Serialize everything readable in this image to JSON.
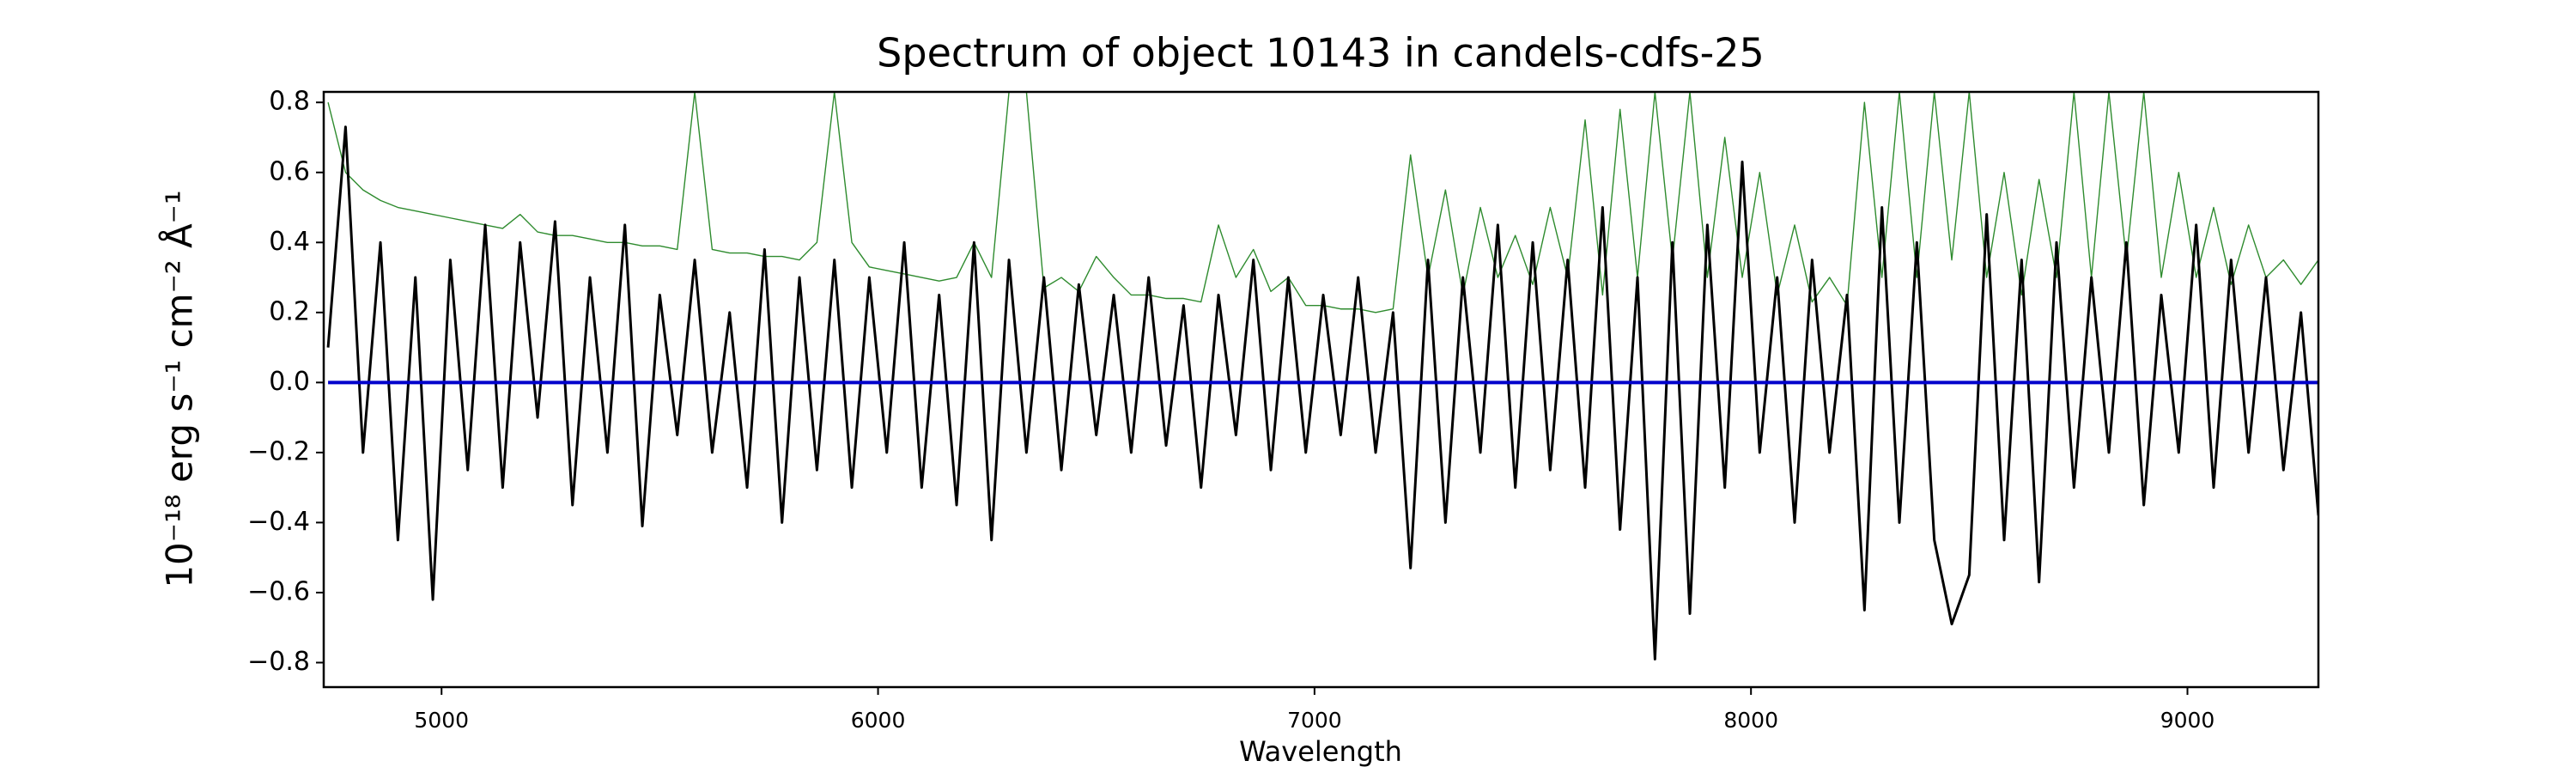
{
  "chart_data": {
    "type": "line",
    "title": "Spectrum of object 10143 in candels-cdfs-25",
    "x_label": "Wavelength",
    "y_label": "10⁻¹⁸ erg s⁻¹ cm⁻² Å⁻¹",
    "x": [
      4740,
      4780,
      4820,
      4860,
      4900,
      4940,
      4980,
      5020,
      5060,
      5100,
      5140,
      5180,
      5220,
      5260,
      5300,
      5340,
      5380,
      5420,
      5460,
      5500,
      5540,
      5580,
      5620,
      5660,
      5700,
      5740,
      5780,
      5820,
      5860,
      5900,
      5940,
      5980,
      6020,
      6060,
      6100,
      6140,
      6180,
      6220,
      6260,
      6300,
      6340,
      6380,
      6420,
      6460,
      6500,
      6540,
      6580,
      6620,
      6660,
      6700,
      6740,
      6780,
      6820,
      6860,
      6900,
      6940,
      6980,
      7020,
      7060,
      7100,
      7140,
      7180,
      7220,
      7260,
      7300,
      7340,
      7380,
      7420,
      7460,
      7500,
      7540,
      7580,
      7620,
      7660,
      7700,
      7740,
      7780,
      7820,
      7860,
      7900,
      7940,
      7980,
      8020,
      8060,
      8100,
      8140,
      8180,
      8220,
      8260,
      8300,
      8340,
      8380,
      8420,
      8460,
      8500,
      8540,
      8580,
      8620,
      8660,
      8700,
      8740,
      8780,
      8820,
      8860,
      8900,
      8940,
      8980,
      9020,
      9060,
      9100,
      9140,
      9180,
      9220,
      9260,
      9300
    ],
    "series": [
      {
        "color": "#2e8b2e",
        "width": 1.4,
        "values": [
          0.8,
          0.6,
          0.55,
          0.52,
          0.5,
          0.49,
          0.48,
          0.47,
          0.46,
          0.45,
          0.44,
          0.48,
          0.43,
          0.42,
          0.42,
          0.41,
          0.4,
          0.4,
          0.39,
          0.39,
          0.38,
          0.83,
          0.38,
          0.37,
          0.37,
          0.36,
          0.36,
          0.35,
          0.4,
          0.83,
          0.4,
          0.33,
          0.32,
          0.31,
          0.3,
          0.29,
          0.3,
          0.4,
          0.3,
          0.83,
          0.83,
          0.27,
          0.3,
          0.26,
          0.36,
          0.3,
          0.25,
          0.25,
          0.24,
          0.24,
          0.23,
          0.45,
          0.3,
          0.38,
          0.26,
          0.3,
          0.22,
          0.22,
          0.21,
          0.21,
          0.2,
          0.21,
          0.65,
          0.3,
          0.55,
          0.25,
          0.5,
          0.3,
          0.42,
          0.28,
          0.5,
          0.3,
          0.75,
          0.25,
          0.78,
          0.3,
          0.83,
          0.35,
          0.83,
          0.3,
          0.7,
          0.3,
          0.6,
          0.25,
          0.45,
          0.23,
          0.3,
          0.22,
          0.8,
          0.3,
          0.83,
          0.3,
          0.83,
          0.35,
          0.83,
          0.3,
          0.6,
          0.25,
          0.58,
          0.3,
          0.83,
          0.3,
          0.83,
          0.35,
          0.83,
          0.3,
          0.6,
          0.3,
          0.5,
          0.28,
          0.45,
          0.3,
          0.35,
          0.28,
          0.35
        ]
      },
      {
        "color": "#000000",
        "width": 3,
        "values": [
          0.1,
          0.73,
          -0.2,
          0.4,
          -0.45,
          0.3,
          -0.62,
          0.35,
          -0.25,
          0.45,
          -0.3,
          0.4,
          -0.1,
          0.46,
          -0.35,
          0.3,
          -0.2,
          0.45,
          -0.41,
          0.25,
          -0.15,
          0.35,
          -0.2,
          0.2,
          -0.3,
          0.38,
          -0.4,
          0.3,
          -0.25,
          0.35,
          -0.3,
          0.3,
          -0.2,
          0.4,
          -0.3,
          0.25,
          -0.35,
          0.4,
          -0.45,
          0.35,
          -0.2,
          0.3,
          -0.25,
          0.28,
          -0.15,
          0.25,
          -0.2,
          0.3,
          -0.18,
          0.22,
          -0.3,
          0.25,
          -0.15,
          0.35,
          -0.25,
          0.3,
          -0.2,
          0.25,
          -0.15,
          0.3,
          -0.2,
          0.2,
          -0.53,
          0.35,
          -0.4,
          0.3,
          -0.2,
          0.45,
          -0.3,
          0.4,
          -0.25,
          0.35,
          -0.3,
          0.5,
          -0.42,
          0.3,
          -0.79,
          0.4,
          -0.66,
          0.45,
          -0.3,
          0.63,
          -0.2,
          0.3,
          -0.4,
          0.35,
          -0.2,
          0.25,
          -0.65,
          0.5,
          -0.4,
          0.4,
          -0.45,
          -0.69,
          -0.55,
          0.48,
          -0.45,
          0.35,
          -0.57,
          0.4,
          -0.3,
          0.3,
          -0.2,
          0.4,
          -0.35,
          0.25,
          -0.2,
          0.45,
          -0.3,
          0.35,
          -0.2,
          0.3,
          -0.25,
          0.2,
          -0.38
        ]
      },
      {
        "color": "#0000cc",
        "width": 4,
        "values": [
          0,
          0,
          0,
          0,
          0,
          0,
          0,
          0,
          0,
          0,
          0,
          0,
          0,
          0,
          0,
          0,
          0,
          0,
          0,
          0,
          0,
          0,
          0,
          0,
          0,
          0,
          0,
          0,
          0,
          0,
          0,
          0,
          0,
          0,
          0,
          0,
          0,
          0,
          0,
          0,
          0,
          0,
          0,
          0,
          0,
          0,
          0,
          0,
          0,
          0,
          0,
          0,
          0,
          0,
          0,
          0,
          0,
          0,
          0,
          0,
          0,
          0,
          0,
          0,
          0,
          0,
          0,
          0,
          0,
          0,
          0,
          0,
          0,
          0,
          0,
          0,
          0,
          0,
          0,
          0,
          0,
          0,
          0,
          0,
          0,
          0,
          0,
          0,
          0,
          0,
          0,
          0,
          0,
          0,
          0,
          0,
          0,
          0,
          0,
          0,
          0,
          0,
          0,
          0,
          0,
          0,
          0,
          0,
          0,
          0,
          0,
          0,
          0,
          0,
          0
        ]
      }
    ],
    "xlim": [
      4730,
      9300
    ],
    "ylim": [
      -0.87,
      0.83
    ],
    "xticks": [
      5000,
      6000,
      7000,
      8000,
      9000
    ],
    "yticks": [
      {
        "value": -0.8,
        "label": "−0.8"
      },
      {
        "value": -0.6,
        "label": "−0.6"
      },
      {
        "value": -0.4,
        "label": "−0.4"
      },
      {
        "value": -0.2,
        "label": "−0.2"
      },
      {
        "value": 0,
        "label": "0.0"
      },
      0.2,
      0.4,
      0.6,
      0.8
    ]
  }
}
